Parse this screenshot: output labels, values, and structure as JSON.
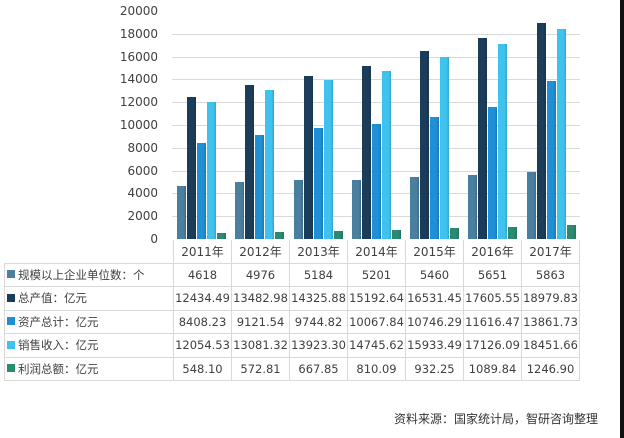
{
  "chart_data": {
    "type": "bar",
    "title": "",
    "xlabel": "",
    "ylabel": "",
    "ylim": [
      0,
      20000
    ],
    "yticks": [
      0,
      2000,
      4000,
      6000,
      8000,
      10000,
      12000,
      14000,
      16000,
      18000,
      20000
    ],
    "grid": true,
    "legend_position": "table-left",
    "categories": [
      "2011年",
      "2012年",
      "2013年",
      "2014年",
      "2015年",
      "2016年",
      "2017年"
    ],
    "series": [
      {
        "name": "规模以上企业单位数：个",
        "color": "#4a7fa0",
        "values": [
          4618,
          4976,
          5184,
          5201,
          5460,
          5651,
          5863
        ],
        "labels": [
          "4618",
          "4976",
          "5184",
          "5201",
          "5460",
          "5651",
          "5863"
        ]
      },
      {
        "name": "总产值：亿元",
        "color": "#1c3d5a",
        "values": [
          12434.49,
          13482.98,
          14325.88,
          15192.64,
          16531.45,
          17605.55,
          18979.83
        ],
        "labels": [
          "12434.49",
          "13482.98",
          "14325.88",
          "15192.64",
          "16531.45",
          "17605.55",
          "18979.83"
        ]
      },
      {
        "name": "资产总计：亿元",
        "color": "#1f8fd6",
        "values": [
          8408.23,
          9121.54,
          9744.82,
          10067.84,
          10746.29,
          11616.47,
          13861.73
        ],
        "labels": [
          "8408.23",
          "9121.54",
          "9744.82",
          "10067.84",
          "10746.29",
          "11616.47",
          "13861.73"
        ]
      },
      {
        "name": "销售收入：亿元",
        "color": "#3fc3ee",
        "values": [
          12054.53,
          13081.32,
          13923.3,
          14745.62,
          15933.49,
          17126.09,
          18451.66
        ],
        "labels": [
          "12054.53",
          "13081.32",
          "13923.30",
          "14745.62",
          "15933.49",
          "17126.09",
          "18451.66"
        ]
      },
      {
        "name": "利润总额：亿元",
        "color": "#2a8a72",
        "values": [
          548.1,
          572.81,
          667.85,
          810.09,
          932.25,
          1089.84,
          1246.9
        ],
        "labels": [
          "548.10",
          "572.81",
          "667.85",
          "810.09",
          "932.25",
          "1089.84",
          "1246.90"
        ]
      }
    ]
  },
  "source": "资料来源：国家统计局，智研咨询整理"
}
